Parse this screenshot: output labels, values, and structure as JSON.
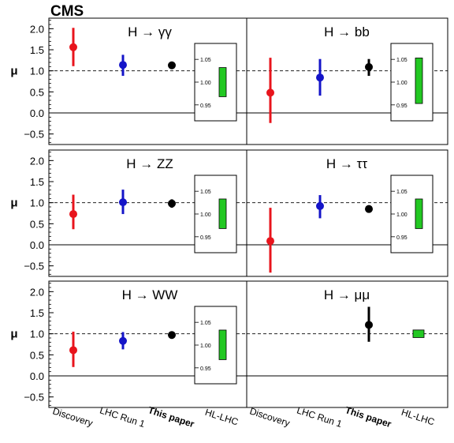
{
  "experiment_label": "CMS",
  "colors": {
    "discovery": "#e8141c",
    "lhc_run1": "#1414c8",
    "this_paper": "#000000",
    "hl_lhc": "#22c822"
  },
  "chart_data": {
    "type": "scatter",
    "ylabel": "μ",
    "ylim": [
      -0.75,
      2.25
    ],
    "yticks": [
      "2.0",
      "1.5",
      "1.0",
      "0.5",
      "0.0",
      "−0.5"
    ],
    "ytick_values": [
      2.0,
      1.5,
      1.0,
      0.5,
      0.0,
      -0.5
    ],
    "reference_line": 1.0,
    "categories": [
      "Discovery",
      "LHC Run 1",
      "This paper",
      "HL-LHC"
    ],
    "inset_yticks": [
      "1.05",
      "1.00",
      "0.95"
    ],
    "inset_ytick_values": [
      1.05,
      1.0,
      0.95
    ],
    "inset_ylim": [
      0.915,
      1.085
    ],
    "panels": [
      {
        "channel": "H → γγ",
        "points": [
          {
            "category": "Discovery",
            "value": 1.56,
            "low": 1.11,
            "high": 2.02
          },
          {
            "category": "LHC Run 1",
            "value": 1.14,
            "low": 0.88,
            "high": 1.38
          },
          {
            "category": "This paper",
            "value": 1.13,
            "low": 1.05,
            "high": 1.22
          }
        ],
        "hl_lhc_band": [
          0.968,
          1.032
        ]
      },
      {
        "channel": "H → bb",
        "points": [
          {
            "category": "Discovery",
            "value": 0.48,
            "low": -0.24,
            "high": 1.31
          },
          {
            "category": "LHC Run 1",
            "value": 0.84,
            "low": 0.41,
            "high": 1.28
          },
          {
            "category": "This paper",
            "value": 1.09,
            "low": 0.88,
            "high": 1.28
          }
        ],
        "hl_lhc_band": [
          0.953,
          1.053
        ]
      },
      {
        "channel": "H → ZZ",
        "points": [
          {
            "category": "Discovery",
            "value": 0.73,
            "low": 0.37,
            "high": 1.19
          },
          {
            "category": "LHC Run 1",
            "value": 1.01,
            "low": 0.73,
            "high": 1.31
          },
          {
            "category": "This paper",
            "value": 0.98,
            "low": 0.88,
            "high": 1.08
          }
        ],
        "hl_lhc_band": [
          0.968,
          1.033
        ]
      },
      {
        "channel": "H → ττ",
        "points": [
          {
            "category": "Discovery",
            "value": 0.09,
            "low": -0.66,
            "high": 0.88
          },
          {
            "category": "LHC Run 1",
            "value": 0.92,
            "low": 0.63,
            "high": 1.18
          },
          {
            "category": "This paper",
            "value": 0.85,
            "low": 0.77,
            "high": 0.93
          }
        ],
        "hl_lhc_band": [
          0.968,
          1.033
        ]
      },
      {
        "channel": "H → WW",
        "points": [
          {
            "category": "Discovery",
            "value": 0.61,
            "low": 0.21,
            "high": 1.05
          },
          {
            "category": "LHC Run 1",
            "value": 0.83,
            "low": 0.63,
            "high": 1.04
          },
          {
            "category": "This paper",
            "value": 0.97,
            "low": 0.89,
            "high": 1.05
          }
        ],
        "hl_lhc_band": [
          0.968,
          1.033
        ]
      },
      {
        "channel": "H → μμ",
        "points": [
          {
            "category": "This paper",
            "value": 1.21,
            "low": 0.81,
            "high": 1.64
          }
        ],
        "hl_lhc_point": {
          "value": 1.0,
          "low": 0.91,
          "high": 1.09
        }
      }
    ]
  }
}
